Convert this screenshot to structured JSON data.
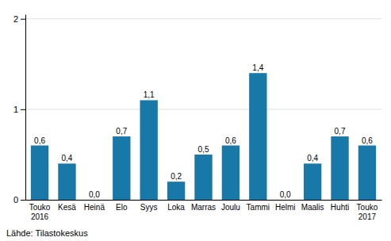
{
  "chart_data": {
    "type": "bar",
    "categories": [
      "Touko\n2016",
      "Kesä",
      "Heinä",
      "Elo",
      "Syys",
      "Loka",
      "Marras",
      "Joulu",
      "Tammi",
      "Helmi",
      "Maalis",
      "Huhti",
      "Touko\n2017"
    ],
    "values": [
      0.6,
      0.4,
      0.0,
      0.7,
      1.1,
      0.2,
      0.5,
      0.6,
      1.4,
      0.0,
      0.4,
      0.7,
      0.6
    ],
    "value_labels": [
      "0,6",
      "0,4",
      "0,0",
      "0,7",
      "1,1",
      "0,2",
      "0,5",
      "0,6",
      "1,4",
      "0,0",
      "0,4",
      "0,7",
      "0,6"
    ],
    "data_labels": true,
    "color": "#1878a8",
    "ylim": [
      0,
      2.05
    ],
    "yticks": [
      0,
      1,
      2
    ],
    "grid": true,
    "source": "Lähde: Tilastokeskus"
  }
}
